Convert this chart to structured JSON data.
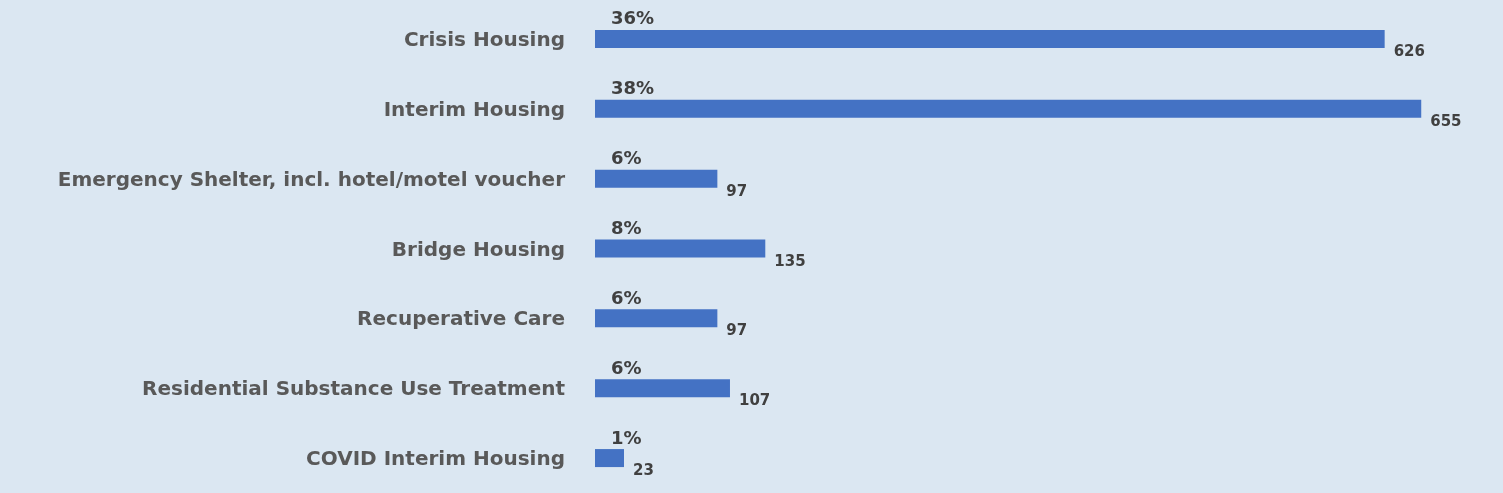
{
  "chart_data": {
    "type": "bar",
    "orientation": "horizontal",
    "categories": [
      "Crisis Housing",
      "Interim Housing",
      "Emergency Shelter, incl. hotel/motel voucher",
      "Bridge Housing",
      "Recuperative Care",
      "Residential Substance Use Treatment",
      "COVID Interim Housing"
    ],
    "values": [
      626,
      655,
      97,
      135,
      97,
      107,
      23
    ],
    "color": "#4472c4",
    "data_labels": true,
    "tick_labels": "y",
    "annotations": [
      "36%",
      "38%",
      "6%",
      "8%",
      "6%",
      "6%",
      "1%"
    ]
  }
}
